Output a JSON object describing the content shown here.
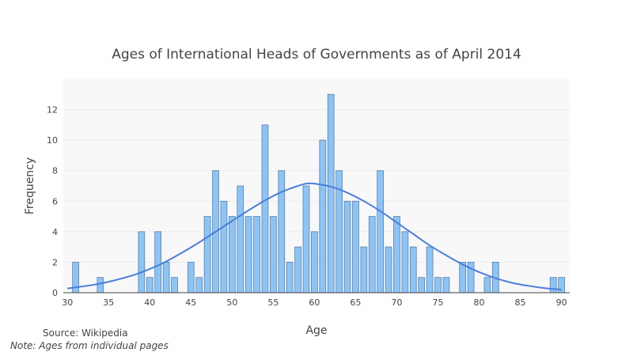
{
  "chart_data": {
    "type": "bar",
    "title": "Ages of International Heads of Governments as of April 2014",
    "xlabel": "Age",
    "ylabel": "Frequency",
    "xlim": [
      29.5,
      91
    ],
    "ylim": [
      0,
      14
    ],
    "x_ticks": [
      30,
      35,
      40,
      45,
      50,
      55,
      60,
      65,
      70,
      75,
      80,
      85,
      90
    ],
    "y_ticks": [
      0,
      2,
      4,
      6,
      8,
      10,
      12
    ],
    "grid": true,
    "bar_color": "#8cc4f5",
    "bar_edge_color": "#5a7fa8",
    "curve_color": "#4a7fdc",
    "series": [
      {
        "kind": "histogram",
        "x": [
          31,
          34,
          39,
          40,
          41,
          42,
          43,
          45,
          46,
          47,
          48,
          49,
          50,
          51,
          52,
          53,
          54,
          55,
          56,
          57,
          58,
          59,
          60,
          61,
          62,
          63,
          64,
          65,
          66,
          67,
          68,
          69,
          70,
          71,
          72,
          73,
          74,
          75,
          76,
          78,
          79,
          81,
          82,
          89,
          90
        ],
        "values": [
          2,
          1,
          4,
          1,
          4,
          2,
          1,
          2,
          1,
          5,
          8,
          6,
          5,
          7,
          5,
          5,
          11,
          5,
          8,
          2,
          3,
          7,
          4,
          10,
          13,
          8,
          6,
          6,
          3,
          5,
          8,
          3,
          5,
          4,
          3,
          1,
          3,
          1,
          1,
          2,
          2,
          1,
          2,
          1,
          1
        ]
      },
      {
        "kind": "normal-curve",
        "x": [
          30,
          32,
          34,
          36,
          38,
          40,
          42,
          44,
          46,
          48,
          50,
          52,
          54,
          56,
          58,
          59,
          60,
          62,
          64,
          66,
          68,
          70,
          72,
          74,
          76,
          78,
          80,
          82,
          84,
          86,
          88,
          90
        ],
        "values": [
          0.28,
          0.42,
          0.6,
          0.85,
          1.15,
          1.55,
          2.05,
          2.65,
          3.3,
          4.0,
          4.7,
          5.4,
          6.05,
          6.6,
          7.0,
          7.15,
          7.15,
          6.95,
          6.55,
          6.0,
          5.35,
          4.6,
          3.85,
          3.1,
          2.45,
          1.85,
          1.35,
          0.95,
          0.65,
          0.45,
          0.3,
          0.2
        ]
      }
    ]
  },
  "annotations": {
    "source": "Source: Wikipedia",
    "note": "Note: Ages from individual pages"
  }
}
